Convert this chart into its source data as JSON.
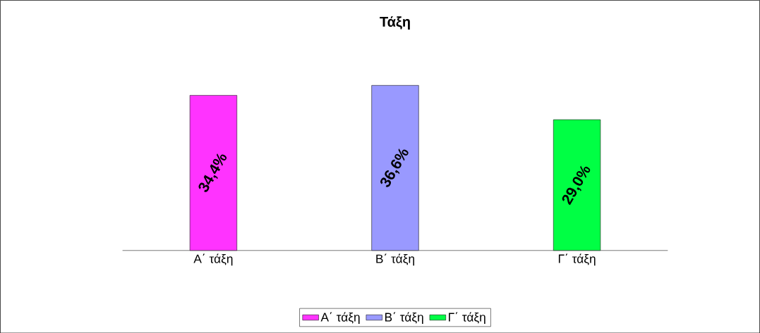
{
  "chart_data": {
    "type": "bar",
    "title": "Τάξη",
    "categories": [
      "Α΄ τάξη",
      "Β΄ τάξη",
      "Γ΄ τάξη"
    ],
    "series": [
      {
        "name": "Α΄ τάξη",
        "color": "#ff33ff",
        "values": [
          34.4,
          null,
          null
        ],
        "value_labels": [
          "34,4%",
          null,
          null
        ]
      },
      {
        "name": "Β΄ τάξη",
        "color": "#9999ff",
        "values": [
          null,
          36.6,
          null
        ],
        "value_labels": [
          null,
          "36,6%",
          null
        ]
      },
      {
        "name": "Γ΄ τάξη",
        "color": "#00ff44",
        "values": [
          null,
          null,
          29.0
        ],
        "value_labels": [
          null,
          null,
          "29,0%"
        ]
      }
    ],
    "legend": "bottom"
  }
}
